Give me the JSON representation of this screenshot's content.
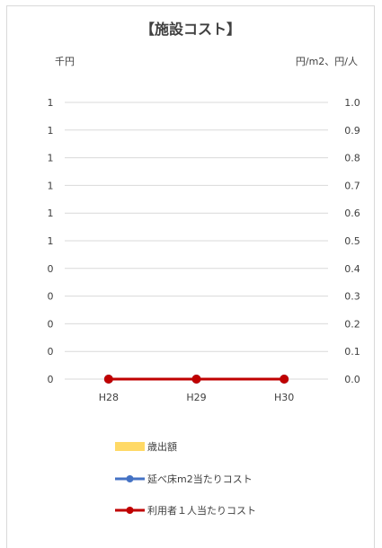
{
  "chart_data": {
    "type": "bar",
    "title": "【施設コスト】",
    "left_axis_unit": "千円",
    "right_axis_unit": "円/m2、円/人",
    "categories": [
      "H28",
      "H29",
      "H30"
    ],
    "left_ticks": [
      "0",
      "0",
      "0",
      "0",
      "0",
      "1",
      "1",
      "1",
      "1",
      "1",
      "1"
    ],
    "right_ticks": [
      "0.0",
      "0.1",
      "0.2",
      "0.3",
      "0.4",
      "0.5",
      "0.6",
      "0.7",
      "0.8",
      "0.9",
      "1.0"
    ],
    "right_ylim": [
      0,
      1.0
    ],
    "grid": true,
    "legend_position": "bottom",
    "series": [
      {
        "name": "歳出額",
        "kind": "bar",
        "axis": "left",
        "values": [
          0,
          0,
          0
        ],
        "color": "#ffd966"
      },
      {
        "name": "延べ床m2当たりコスト",
        "kind": "line",
        "axis": "right",
        "values": [
          0,
          0,
          0
        ],
        "color": "#4472c4"
      },
      {
        "name": "利用者１人当たりコスト",
        "kind": "line",
        "axis": "right",
        "values": [
          0,
          0,
          0
        ],
        "color": "#c00000"
      }
    ]
  }
}
